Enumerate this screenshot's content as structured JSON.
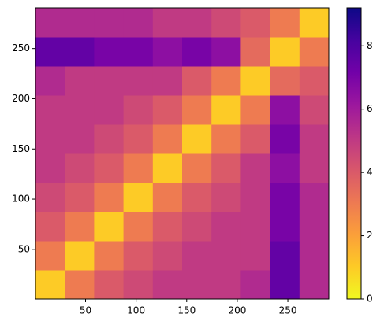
{
  "chart_data": {
    "type": "heatmap",
    "x": [
      15,
      44,
      73,
      102,
      131,
      160,
      189,
      218,
      247,
      276
    ],
    "y": [
      15,
      44,
      73,
      102,
      131,
      160,
      189,
      218,
      247,
      276
    ],
    "z": [
      [
        1,
        3,
        4,
        4.5,
        5,
        5,
        5,
        5.5,
        7.5,
        5.5
      ],
      [
        3,
        1,
        3,
        4,
        4.5,
        5,
        5,
        5,
        7.5,
        5.5
      ],
      [
        4,
        3,
        1,
        3,
        4,
        4.5,
        5,
        5,
        7,
        5.5
      ],
      [
        4.5,
        4,
        3,
        1,
        3,
        4,
        4.5,
        5,
        7,
        5.5
      ],
      [
        5,
        4.5,
        4,
        3,
        1,
        3,
        4,
        5,
        6.5,
        5
      ],
      [
        5,
        5,
        4.5,
        4,
        3,
        1,
        3,
        4,
        7,
        5
      ],
      [
        5,
        5,
        5,
        4.5,
        4,
        3,
        1,
        3,
        6.5,
        4.5
      ],
      [
        5.5,
        5,
        5,
        5,
        5,
        4,
        3,
        1,
        3.5,
        4
      ],
      [
        7.5,
        7.5,
        7,
        7,
        6.5,
        7,
        6.5,
        3.5,
        1,
        3
      ],
      [
        5.5,
        5.5,
        5.5,
        5.5,
        5,
        5,
        4.5,
        4,
        3,
        1
      ]
    ],
    "xlim": [
      0.5,
      290.5
    ],
    "ylim": [
      0.5,
      290.5
    ],
    "xticks": [
      50,
      100,
      150,
      200,
      250
    ],
    "yticks": [
      50,
      100,
      150,
      200,
      250
    ],
    "colormap": "plasma_r",
    "clim": [
      0,
      9.2
    ],
    "cticks": [
      0,
      2,
      4,
      6,
      8
    ]
  }
}
